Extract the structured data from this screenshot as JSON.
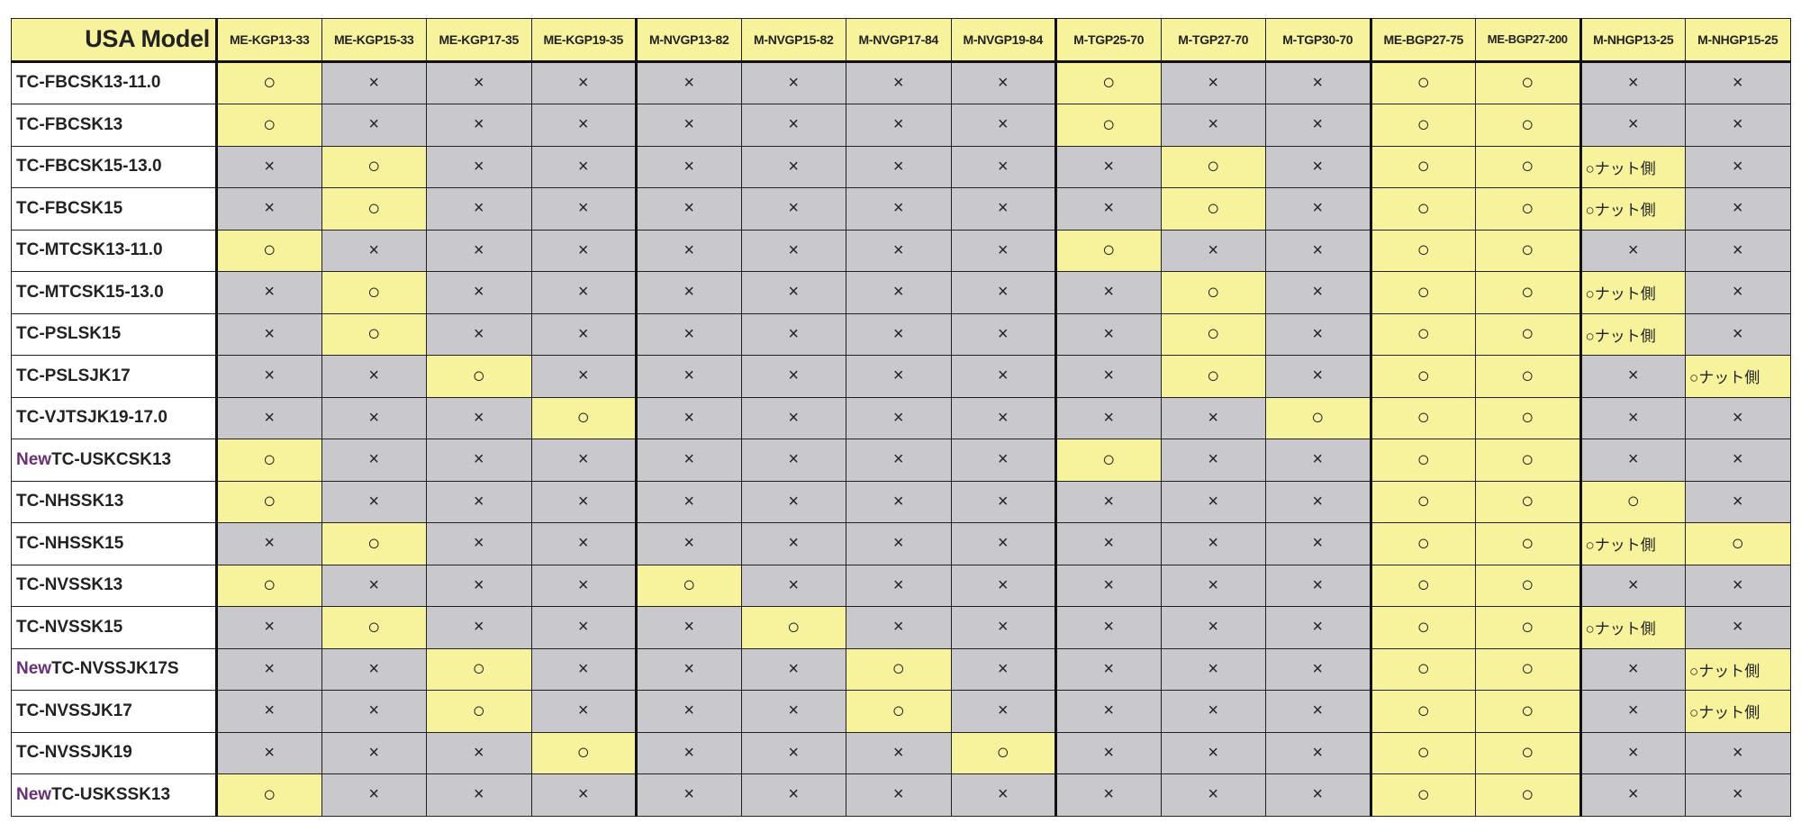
{
  "header": {
    "corner_label": "USA Model",
    "columns": [
      "ME-KGP13-33",
      "ME-KGP15-33",
      "ME-KGP17-35",
      "ME-KGP19-35",
      "M-NVGP13-82",
      "M-NVGP15-82",
      "M-NVGP17-84",
      "M-NVGP19-84",
      "M-TGP25-70",
      "M-TGP27-70",
      "M-TGP30-70",
      "ME-BGP27-75",
      "ME-BGP27-200",
      "M-NHGP13-25",
      "M-NHGP15-25"
    ]
  },
  "legend": {
    "O": "○",
    "X": "×",
    "N": "○ナット側"
  },
  "colors": {
    "compatible": "#f7f39d",
    "incompatible": "#c9c9cd",
    "new_prefix": "#6b2f7a"
  },
  "rows": [
    {
      "prefix": "",
      "model": "TC-FBCSK13-11.0",
      "cells": [
        "O",
        "X",
        "X",
        "X",
        "X",
        "X",
        "X",
        "X",
        "O",
        "X",
        "X",
        "O",
        "O",
        "X",
        "X"
      ]
    },
    {
      "prefix": "",
      "model": "TC-FBCSK13",
      "cells": [
        "O",
        "X",
        "X",
        "X",
        "X",
        "X",
        "X",
        "X",
        "O",
        "X",
        "X",
        "O",
        "O",
        "X",
        "X"
      ]
    },
    {
      "prefix": "",
      "model": "TC-FBCSK15-13.0",
      "cells": [
        "X",
        "O",
        "X",
        "X",
        "X",
        "X",
        "X",
        "X",
        "X",
        "O",
        "X",
        "O",
        "O",
        "N",
        "X"
      ]
    },
    {
      "prefix": "",
      "model": "TC-FBCSK15",
      "cells": [
        "X",
        "O",
        "X",
        "X",
        "X",
        "X",
        "X",
        "X",
        "X",
        "O",
        "X",
        "O",
        "O",
        "N",
        "X"
      ]
    },
    {
      "prefix": "",
      "model": "TC-MTCSK13-11.0",
      "cells": [
        "O",
        "X",
        "X",
        "X",
        "X",
        "X",
        "X",
        "X",
        "O",
        "X",
        "X",
        "O",
        "O",
        "X",
        "X"
      ]
    },
    {
      "prefix": "",
      "model": "TC-MTCSK15-13.0",
      "cells": [
        "X",
        "O",
        "X",
        "X",
        "X",
        "X",
        "X",
        "X",
        "X",
        "O",
        "X",
        "O",
        "O",
        "N",
        "X"
      ]
    },
    {
      "prefix": "",
      "model": "TC-PSLSK15",
      "cells": [
        "X",
        "O",
        "X",
        "X",
        "X",
        "X",
        "X",
        "X",
        "X",
        "O",
        "X",
        "O",
        "O",
        "N",
        "X"
      ]
    },
    {
      "prefix": "",
      "model": "TC-PSLSJK17",
      "cells": [
        "X",
        "X",
        "O",
        "X",
        "X",
        "X",
        "X",
        "X",
        "X",
        "O",
        "X",
        "O",
        "O",
        "X",
        "N"
      ]
    },
    {
      "prefix": "",
      "model": "TC-VJTSJK19-17.0",
      "cells": [
        "X",
        "X",
        "X",
        "O",
        "X",
        "X",
        "X",
        "X",
        "X",
        "X",
        "O",
        "O",
        "O",
        "X",
        "X"
      ]
    },
    {
      "prefix": "New",
      "model": "TC-USKCSK13",
      "cells": [
        "O",
        "X",
        "X",
        "X",
        "X",
        "X",
        "X",
        "X",
        "O",
        "X",
        "X",
        "O",
        "O",
        "X",
        "X"
      ]
    },
    {
      "prefix": "",
      "model": "TC-NHSSK13",
      "cells": [
        "O",
        "X",
        "X",
        "X",
        "X",
        "X",
        "X",
        "X",
        "X",
        "X",
        "X",
        "O",
        "O",
        "O",
        "X"
      ]
    },
    {
      "prefix": "",
      "model": "TC-NHSSK15",
      "cells": [
        "X",
        "O",
        "X",
        "X",
        "X",
        "X",
        "X",
        "X",
        "X",
        "X",
        "X",
        "O",
        "O",
        "N",
        "O"
      ]
    },
    {
      "prefix": "",
      "model": "TC-NVSSK13",
      "cells": [
        "O",
        "X",
        "X",
        "X",
        "O",
        "X",
        "X",
        "X",
        "X",
        "X",
        "X",
        "O",
        "O",
        "X",
        "X"
      ]
    },
    {
      "prefix": "",
      "model": "TC-NVSSK15",
      "cells": [
        "X",
        "O",
        "X",
        "X",
        "X",
        "O",
        "X",
        "X",
        "X",
        "X",
        "X",
        "O",
        "O",
        "N",
        "X"
      ]
    },
    {
      "prefix": "New",
      "model": "TC-NVSSJK17S",
      "cells": [
        "X",
        "X",
        "O",
        "X",
        "X",
        "X",
        "O",
        "X",
        "X",
        "X",
        "X",
        "O",
        "O",
        "X",
        "N"
      ]
    },
    {
      "prefix": "",
      "model": "TC-NVSSJK17",
      "cells": [
        "X",
        "X",
        "O",
        "X",
        "X",
        "X",
        "O",
        "X",
        "X",
        "X",
        "X",
        "O",
        "O",
        "X",
        "N"
      ]
    },
    {
      "prefix": "",
      "model": "TC-NVSSJK19",
      "cells": [
        "X",
        "X",
        "X",
        "O",
        "X",
        "X",
        "X",
        "O",
        "X",
        "X",
        "X",
        "O",
        "O",
        "X",
        "X"
      ]
    },
    {
      "prefix": "New",
      "model": "TC-USKSSK13",
      "cells": [
        "O",
        "X",
        "X",
        "X",
        "X",
        "X",
        "X",
        "X",
        "X",
        "X",
        "X",
        "O",
        "O",
        "X",
        "X"
      ]
    }
  ]
}
